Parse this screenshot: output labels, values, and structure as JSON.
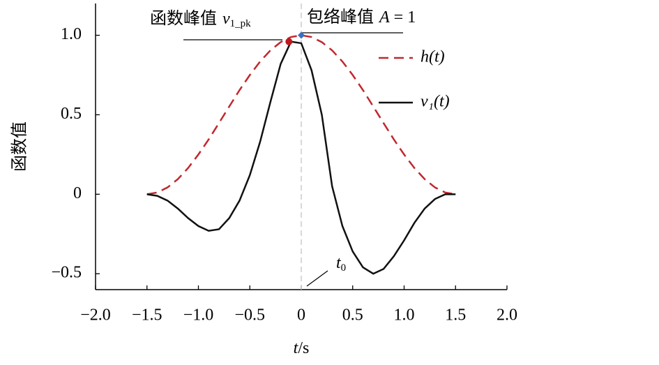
{
  "chart_data": {
    "type": "line",
    "y_label": "函数值",
    "x_label_symbol": "t",
    "x_label_unit": "/s",
    "x": [
      -1.5,
      -1.4,
      -1.3,
      -1.2,
      -1.1,
      -1.0,
      -0.9,
      -0.8,
      -0.7,
      -0.6,
      -0.5,
      -0.4,
      -0.3,
      -0.2,
      -0.1,
      0,
      0.1,
      0.2,
      0.3,
      0.4,
      0.5,
      0.6,
      0.7,
      0.8,
      0.9,
      1.0,
      1.1,
      1.2,
      1.3,
      1.4,
      1.5
    ],
    "series": [
      {
        "name": "h(t)",
        "color": "#c0282d",
        "dashed": true,
        "values": [
          0,
          0.011,
          0.043,
          0.095,
          0.165,
          0.25,
          0.345,
          0.448,
          0.552,
          0.655,
          0.75,
          0.835,
          0.905,
          0.957,
          0.989,
          1,
          0.989,
          0.957,
          0.905,
          0.835,
          0.75,
          0.655,
          0.552,
          0.448,
          0.345,
          0.25,
          0.165,
          0.095,
          0.043,
          0.011,
          0
        ]
      },
      {
        "name": "v₁(t)",
        "color": "#111111",
        "dashed": false,
        "values": [
          0,
          -0.01,
          -0.04,
          -0.09,
          -0.15,
          -0.2,
          -0.23,
          -0.22,
          -0.15,
          -0.04,
          0.12,
          0.33,
          0.58,
          0.82,
          0.96,
          0.95,
          0.78,
          0.5,
          0.05,
          -0.2,
          -0.36,
          -0.46,
          -0.5,
          -0.47,
          -0.39,
          -0.29,
          -0.18,
          -0.09,
          -0.03,
          0,
          0
        ]
      }
    ],
    "xlim": [
      -2,
      2
    ],
    "ylim": [
      -0.6,
      1.2
    ],
    "xticks": [
      {
        "value": -2,
        "label": "−2.0"
      },
      {
        "value": -1.5,
        "label": "−1.5"
      },
      {
        "value": -1,
        "label": "−1.0"
      },
      {
        "value": -0.5,
        "label": "−0.5"
      },
      0,
      0.5,
      {
        "value": 1,
        "label": "1.0"
      },
      1.5,
      {
        "value": 2,
        "label": "2.0"
      }
    ],
    "yticks": [
      {
        "value": -0.5,
        "label": "−0.5"
      },
      0,
      0.5,
      {
        "value": 1,
        "label": "1.0"
      }
    ],
    "function_peak": {
      "label": "函数峰值",
      "symbol": "v",
      "subscript": "1_pk",
      "x": -0.12,
      "y": 0.96,
      "color": "#c0181d"
    },
    "envelope_peak": {
      "label": "包络峰值",
      "symbol": "A",
      "value_text": "= 1",
      "x": 0,
      "y": 1,
      "color": "#3a6fc4"
    },
    "t0_label": {
      "symbol": "t",
      "subscript": "0"
    }
  }
}
